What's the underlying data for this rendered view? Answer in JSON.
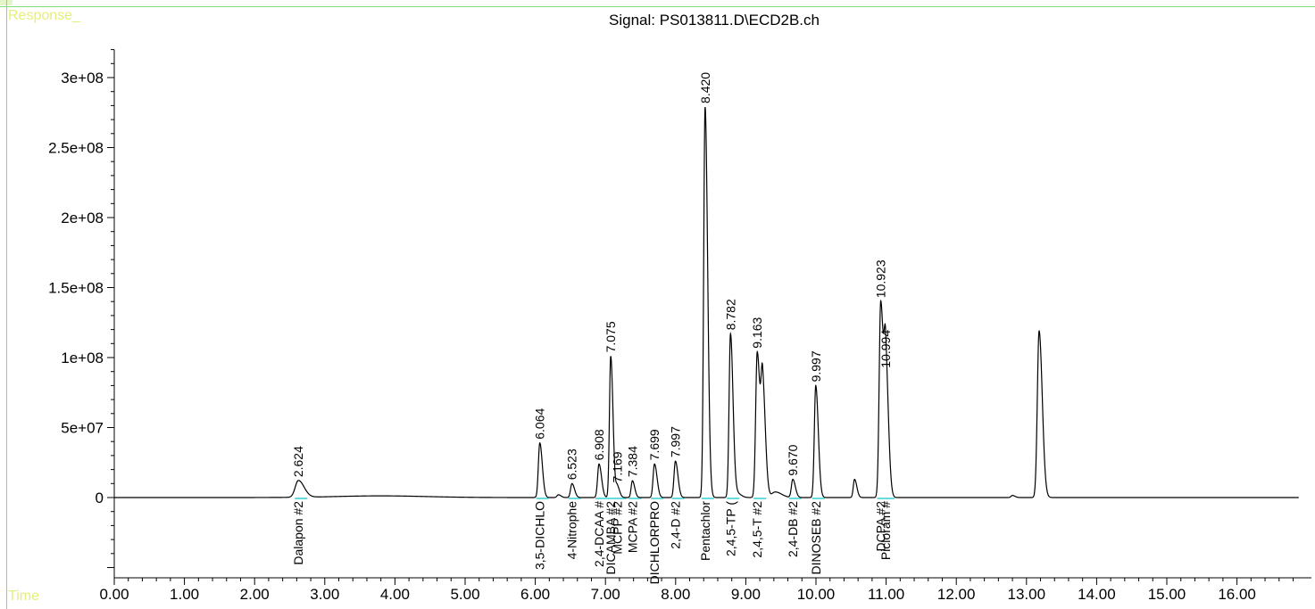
{
  "window": {
    "response_label": "Response_",
    "time_label": "Time",
    "title": "Signal: PS013811.D\\ECD2B.ch"
  },
  "colors": {
    "frame": "#7fdc7f",
    "axis_caption": "#e6ee7a",
    "trace": "#000000",
    "baseline_fill": "#66dcdc"
  },
  "chart_data": {
    "type": "line",
    "title": "Signal: PS013811.D\\ECD2B.ch",
    "xlabel": "Time",
    "ylabel": "Response_",
    "xlim": [
      0.0,
      16.9
    ],
    "ylim": [
      -55000000,
      320000000
    ],
    "x_ticks": [
      "0.00",
      "1.00",
      "2.00",
      "3.00",
      "4.00",
      "5.00",
      "6.00",
      "7.00",
      "8.00",
      "9.00",
      "10.00",
      "11.00",
      "12.00",
      "13.00",
      "14.00",
      "15.00",
      "16.00"
    ],
    "y_ticks": [
      "0",
      "5e+07",
      "1e+08",
      "1.5e+08",
      "2e+08",
      "2.5e+08",
      "3e+08"
    ],
    "grid": false,
    "peaks": [
      {
        "rt": 2.624,
        "height": 12000000,
        "width": 0.045,
        "rt_label": "2.624",
        "compound": "Dalapon #2"
      },
      {
        "rt": 6.064,
        "height": 39000000,
        "width": 0.02,
        "rt_label": "6.064",
        "compound": "3,5-DICHLO"
      },
      {
        "rt": 6.523,
        "height": 10000000,
        "width": 0.02,
        "rt_label": "6.523",
        "compound": "4-Nitrophe"
      },
      {
        "rt": 6.908,
        "height": 24000000,
        "width": 0.02,
        "rt_label": "6.908",
        "compound": "2,4-DCAA #"
      },
      {
        "rt": 7.075,
        "height": 101000000,
        "width": 0.018,
        "rt_label": "7.075",
        "compound": "DICAMBA #2"
      },
      {
        "rt": 7.169,
        "height": 8000000,
        "width": 0.018,
        "rt_label": "7.169",
        "compound": "MCPP #2"
      },
      {
        "rt": 7.384,
        "height": 12000000,
        "width": 0.018,
        "rt_label": "7.384",
        "compound": "MCPA #2"
      },
      {
        "rt": 7.699,
        "height": 24000000,
        "width": 0.02,
        "rt_label": "7.699",
        "compound": "DICHLORPRO"
      },
      {
        "rt": 7.997,
        "height": 26000000,
        "width": 0.02,
        "rt_label": "7.997",
        "compound": "2,4-D #2"
      },
      {
        "rt": 8.42,
        "height": 279000000,
        "width": 0.02,
        "rt_label": "8.420",
        "compound": "Pentachlor"
      },
      {
        "rt": 8.782,
        "height": 117000000,
        "width": 0.02,
        "rt_label": "8.782",
        "compound": "2,4,5-TP ("
      },
      {
        "rt": 9.163,
        "height": 104000000,
        "width": 0.022,
        "rt_label": "9.163",
        "compound": "2,4,5-T #2"
      },
      {
        "rt": 9.67,
        "height": 13000000,
        "width": 0.02,
        "rt_label": "9.670",
        "compound": "2,4-DB #2"
      },
      {
        "rt": 9.997,
        "height": 80000000,
        "width": 0.02,
        "rt_label": "9.997",
        "compound": "DINOSEB #2"
      },
      {
        "rt": 10.923,
        "height": 140000000,
        "width": 0.022,
        "rt_label": "10.923",
        "compound": "DCPA #2"
      },
      {
        "rt": 10.994,
        "height": 90000000,
        "width": 0.022,
        "rt_label": "10.994",
        "compound": "Picloram #"
      }
    ],
    "unlabeled_peaks": [
      {
        "rt": 9.24,
        "height": 78000000,
        "width": 0.022
      },
      {
        "rt": 10.55,
        "height": 13000000,
        "width": 0.018
      },
      {
        "rt": 13.18,
        "height": 119000000,
        "width": 0.025
      },
      {
        "rt": 6.33,
        "height": 2000000,
        "width": 0.02
      },
      {
        "rt": 8.88,
        "height": 3000000,
        "width": 0.03
      },
      {
        "rt": 9.42,
        "height": 4000000,
        "width": 0.05
      },
      {
        "rt": 12.8,
        "height": 1500000,
        "width": 0.02
      }
    ]
  }
}
